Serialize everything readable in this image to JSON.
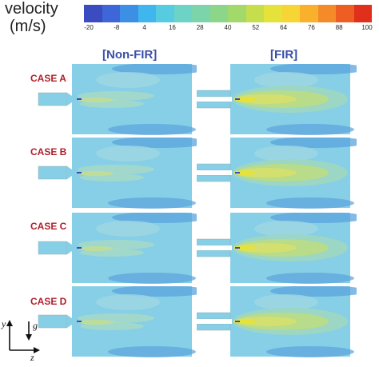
{
  "legend": {
    "title_line1": "velocity",
    "title_line2": "(m/s)",
    "ticks": [
      "-20",
      "-8",
      "4",
      "16",
      "28",
      "40",
      "52",
      "64",
      "76",
      "88",
      "100"
    ],
    "colors": [
      "#3b4cc0",
      "#3f66d8",
      "#3d8fe6",
      "#40b6ef",
      "#57cbe0",
      "#6cd3c6",
      "#7bd4aa",
      "#8cd68a",
      "#a3d86a",
      "#c6de4c",
      "#e6e23c",
      "#f7d534",
      "#f9b12d",
      "#f48b28",
      "#ee5e22",
      "#e02f1b"
    ]
  },
  "columns": [
    {
      "label": "[Non-FIR]"
    },
    {
      "label": "[FIR]"
    }
  ],
  "cases": [
    {
      "label": "CASE A"
    },
    {
      "label": "CASE B"
    },
    {
      "label": "CASE C"
    },
    {
      "label": "CASE D"
    }
  ],
  "axes": {
    "y": "y",
    "g": "g",
    "z": "z"
  }
}
